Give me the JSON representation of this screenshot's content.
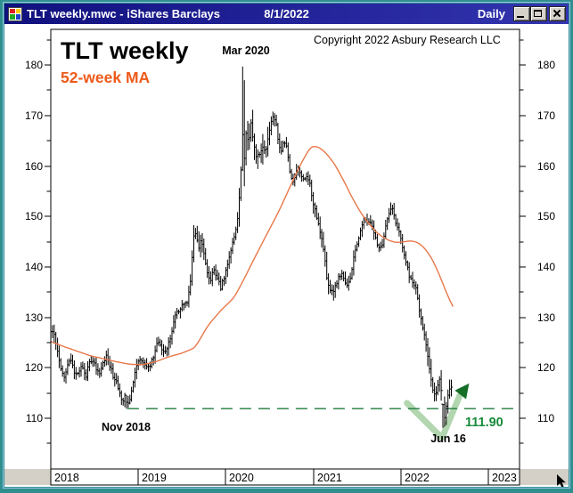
{
  "window": {
    "title": "TLT weekly.mwc - iShares Barclays",
    "date": "8/1/2022",
    "periodicity": "Daily",
    "app_icon": "metastock-chart-icon",
    "buttons": [
      "minimize",
      "maximize",
      "close"
    ]
  },
  "chart": {
    "copyright": "Copyright 2022 Asbury Research LLC",
    "annotations": {
      "mar_2020": "Mar 2020",
      "nov_2018": "Nov 2018",
      "jun_16": "Jun 16",
      "support_label": "111.90"
    }
  },
  "chart_data": {
    "type": "ohlc",
    "title": "TLT weekly",
    "ma_label": "52-week MA",
    "symbol": "TLT",
    "xlim": [
      2018.0,
      2023.36
    ],
    "ylim": [
      100,
      187
    ],
    "x_years": [
      "2018",
      "2019",
      "2020",
      "2021",
      "2022",
      "2023"
    ],
    "y_ticks_major": [
      110,
      120,
      130,
      140,
      150,
      160,
      170,
      180
    ],
    "y_ticks_minor": [
      105,
      115,
      125,
      135,
      145,
      155,
      165,
      175,
      185
    ],
    "support_level": 111.9,
    "support_start_x": 2018.875,
    "weekly_close_anchors": [
      [
        2018.0,
        126.5
      ],
      [
        2018.03,
        127.4
      ],
      [
        2018.06,
        124.5
      ],
      [
        2018.1,
        121.0
      ],
      [
        2018.13,
        119.0
      ],
      [
        2018.16,
        117.8
      ],
      [
        2018.19,
        120.4
      ],
      [
        2018.23,
        121.8
      ],
      [
        2018.27,
        119.2
      ],
      [
        2018.31,
        118.6
      ],
      [
        2018.35,
        120.8
      ],
      [
        2018.4,
        118.2
      ],
      [
        2018.44,
        121.3
      ],
      [
        2018.48,
        121.6
      ],
      [
        2018.52,
        119.6
      ],
      [
        2018.56,
        119.2
      ],
      [
        2018.6,
        121.0
      ],
      [
        2018.63,
        122.4
      ],
      [
        2018.67,
        120.7
      ],
      [
        2018.71,
        118.4
      ],
      [
        2018.75,
        117.2
      ],
      [
        2018.79,
        114.8
      ],
      [
        2018.82,
        113.2
      ],
      [
        2018.85,
        114.4
      ],
      [
        2018.875,
        112.5
      ],
      [
        2018.9,
        113.4
      ],
      [
        2018.94,
        116.5
      ],
      [
        2018.98,
        120.8
      ],
      [
        2019.02,
        122.0
      ],
      [
        2019.06,
        121.0
      ],
      [
        2019.1,
        120.2
      ],
      [
        2019.14,
        120.8
      ],
      [
        2019.19,
        123.0
      ],
      [
        2019.22,
        126.0
      ],
      [
        2019.26,
        123.6
      ],
      [
        2019.3,
        123.2
      ],
      [
        2019.35,
        125.0
      ],
      [
        2019.4,
        128.5
      ],
      [
        2019.44,
        131.2
      ],
      [
        2019.48,
        131.6
      ],
      [
        2019.52,
        132.8
      ],
      [
        2019.56,
        133.2
      ],
      [
        2019.6,
        137.5
      ],
      [
        2019.63,
        146.0
      ],
      [
        2019.66,
        147.0
      ],
      [
        2019.69,
        143.8
      ],
      [
        2019.72,
        145.6
      ],
      [
        2019.75,
        142.8
      ],
      [
        2019.79,
        139.0
      ],
      [
        2019.83,
        137.0
      ],
      [
        2019.86,
        139.8
      ],
      [
        2019.9,
        138.0
      ],
      [
        2019.94,
        135.8
      ],
      [
        2019.98,
        137.8
      ],
      [
        2020.02,
        140.5
      ],
      [
        2020.06,
        143.8
      ],
      [
        2020.1,
        146.0
      ],
      [
        2020.14,
        150.5
      ],
      [
        2020.17,
        158.0
      ],
      [
        2020.19,
        166.5
      ],
      [
        2020.21,
        161.0
      ],
      [
        2020.23,
        166.5
      ],
      [
        2020.26,
        164.5
      ],
      [
        2020.29,
        169.0
      ],
      [
        2020.32,
        164.0
      ],
      [
        2020.35,
        162.0
      ],
      [
        2020.38,
        162.5
      ],
      [
        2020.42,
        164.0
      ],
      [
        2020.46,
        163.0
      ],
      [
        2020.5,
        167.0
      ],
      [
        2020.53,
        170.0
      ],
      [
        2020.57,
        169.0
      ],
      [
        2020.6,
        165.0
      ],
      [
        2020.63,
        162.8
      ],
      [
        2020.66,
        164.6
      ],
      [
        2020.7,
        163.4
      ],
      [
        2020.74,
        158.0
      ],
      [
        2020.78,
        156.8
      ],
      [
        2020.82,
        160.2
      ],
      [
        2020.86,
        158.2
      ],
      [
        2020.9,
        157.6
      ],
      [
        2020.95,
        157.4
      ],
      [
        2021.0,
        152.5
      ],
      [
        2021.04,
        149.8
      ],
      [
        2021.08,
        146.6
      ],
      [
        2021.12,
        143.2
      ],
      [
        2021.16,
        137.0
      ],
      [
        2021.2,
        134.8
      ],
      [
        2021.24,
        135.6
      ],
      [
        2021.28,
        137.6
      ],
      [
        2021.33,
        138.6
      ],
      [
        2021.38,
        136.6
      ],
      [
        2021.42,
        137.8
      ],
      [
        2021.46,
        141.6
      ],
      [
        2021.5,
        144.6
      ],
      [
        2021.54,
        147.0
      ],
      [
        2021.58,
        149.6
      ],
      [
        2021.62,
        148.6
      ],
      [
        2021.66,
        149.2
      ],
      [
        2021.7,
        146.2
      ],
      [
        2021.74,
        144.2
      ],
      [
        2021.78,
        143.6
      ],
      [
        2021.82,
        147.6
      ],
      [
        2021.86,
        150.4
      ],
      [
        2021.9,
        151.8
      ],
      [
        2021.94,
        148.8
      ],
      [
        2021.98,
        146.8
      ],
      [
        2022.02,
        144.0
      ],
      [
        2022.06,
        141.0
      ],
      [
        2022.1,
        138.0
      ],
      [
        2022.14,
        137.0
      ],
      [
        2022.17,
        136.2
      ],
      [
        2022.21,
        131.6
      ],
      [
        2022.25,
        128.0
      ],
      [
        2022.29,
        124.2
      ],
      [
        2022.33,
        119.8
      ],
      [
        2022.37,
        115.2
      ],
      [
        2022.4,
        114.6
      ],
      [
        2022.44,
        117.6
      ],
      [
        2022.46,
        115.8
      ],
      [
        2022.48,
        112.6
      ],
      [
        2022.5,
        110.4
      ],
      [
        2022.53,
        113.8
      ],
      [
        2022.56,
        116.4
      ],
      [
        2022.58,
        116.0
      ]
    ],
    "ma_anchors": [
      [
        2018.0,
        125.2
      ],
      [
        2018.15,
        124.2
      ],
      [
        2018.3,
        123.3
      ],
      [
        2018.45,
        122.4
      ],
      [
        2018.6,
        121.8
      ],
      [
        2018.75,
        121.2
      ],
      [
        2018.9,
        120.7
      ],
      [
        2019.05,
        120.6
      ],
      [
        2019.2,
        121.2
      ],
      [
        2019.35,
        122.2
      ],
      [
        2019.5,
        122.9
      ],
      [
        2019.65,
        124.0
      ],
      [
        2019.8,
        128.5
      ],
      [
        2019.95,
        131.5
      ],
      [
        2020.1,
        134.0
      ],
      [
        2020.22,
        138.0
      ],
      [
        2020.35,
        142.5
      ],
      [
        2020.5,
        147.5
      ],
      [
        2020.62,
        151.5
      ],
      [
        2020.75,
        156.5
      ],
      [
        2020.88,
        161.2
      ],
      [
        2020.98,
        164.0
      ],
      [
        2021.06,
        163.8
      ],
      [
        2021.15,
        162.5
      ],
      [
        2021.25,
        160.2
      ],
      [
        2021.35,
        157.0
      ],
      [
        2021.45,
        153.5
      ],
      [
        2021.55,
        150.5
      ],
      [
        2021.65,
        148.2
      ],
      [
        2021.75,
        146.4
      ],
      [
        2021.85,
        145.3
      ],
      [
        2021.95,
        144.8
      ],
      [
        2022.05,
        145.0
      ],
      [
        2022.12,
        145.2
      ],
      [
        2022.2,
        144.8
      ],
      [
        2022.28,
        143.6
      ],
      [
        2022.36,
        141.5
      ],
      [
        2022.44,
        138.5
      ],
      [
        2022.5,
        135.8
      ],
      [
        2022.56,
        133.3
      ],
      [
        2022.6,
        132.0
      ]
    ],
    "special_bars": [
      {
        "x": 2018.875,
        "high": 114.6,
        "low": 111.9
      },
      {
        "x": 2020.19,
        "high": 179.7,
        "low": 159.0
      },
      {
        "x": 2020.21,
        "high": 177.0,
        "low": 156.0
      },
      {
        "x": 2022.49,
        "high": 112.8,
        "low": 108.1
      }
    ],
    "volatility_zones": [
      {
        "from": 2018.0,
        "to": 2018.1,
        "scale": 1.5
      },
      {
        "from": 2019.6,
        "to": 2019.74,
        "scale": 1.6
      },
      {
        "from": 2020.15,
        "to": 2020.5,
        "scale": 2.1
      },
      {
        "from": 2021.0,
        "to": 2021.25,
        "scale": 1.35
      },
      {
        "from": 2022.28,
        "to": 2022.6,
        "scale": 1.45
      }
    ],
    "bounce_arrow": {
      "points": [
        [
          2022.07,
          113.0
        ],
        [
          2022.47,
          106.1
        ],
        [
          2022.67,
          114.4
        ]
      ],
      "head_tip": [
        2022.78,
        116.9
      ]
    },
    "colors": {
      "price": "#000000",
      "ma_line": "#e8784a",
      "ma_text": "#ee5a1a",
      "support_line": "#1e7c3c",
      "support_text": "#178a3a",
      "arrow_light": "#b2d6b0",
      "arrow_dark": "#156e28",
      "titlebar": "#14128c",
      "window_border": "#2f8f8f"
    }
  }
}
